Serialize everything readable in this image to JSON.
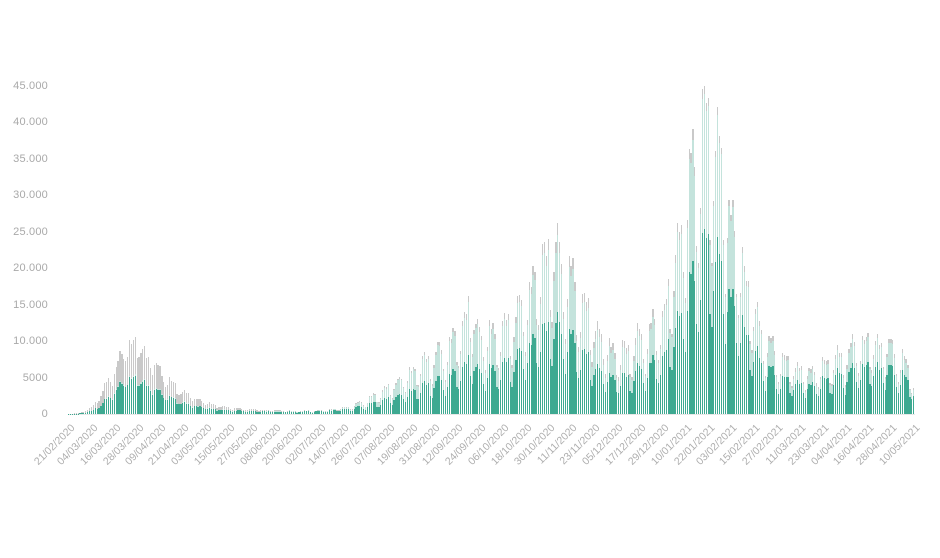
{
  "chart_data": {
    "type": "bar",
    "title": "",
    "legend": "none",
    "grid": "off",
    "n_days": 445,
    "ylim": [
      0,
      45000
    ],
    "y_axis": {
      "ticks": [
        {
          "value": 0,
          "label": "0"
        },
        {
          "value": 5000,
          "label": "5000"
        },
        {
          "value": 10000,
          "label": "10.000"
        },
        {
          "value": 15000,
          "label": "15.000"
        },
        {
          "value": 20000,
          "label": "20.000"
        },
        {
          "value": 25000,
          "label": "25.000"
        },
        {
          "value": 30000,
          "label": "30.000"
        },
        {
          "value": 35000,
          "label": "35.000"
        },
        {
          "value": 40000,
          "label": "40.000"
        },
        {
          "value": 45000,
          "label": "45.000"
        }
      ]
    },
    "x_axis": {
      "tick_interval_days": 12,
      "tick_labels": [
        "21/02/2020",
        "04/03/2020",
        "16/03/2020",
        "28/03/2020",
        "09/04/2020",
        "21/04/2020",
        "03/05/2020",
        "15/05/2020",
        "27/05/2020",
        "08/06/2020",
        "20/06/2020",
        "02/07/2020",
        "14/07/2020",
        "26/07/2020",
        "07/08/2020",
        "19/08/2020",
        "31/08/2020",
        "12/09/2020",
        "24/09/2020",
        "06/10/2020",
        "18/10/2020",
        "30/10/2020",
        "11/11/2020",
        "23/11/2020",
        "05/12/2020",
        "17/12/2020",
        "29/12/2020",
        "10/01/2021",
        "22/01/2021",
        "03/02/2021",
        "15/02/2021",
        "27/02/2021",
        "11/03/2021",
        "23/03/2021",
        "04/04/2021",
        "16/04/2021",
        "28/04/2021",
        "10/05/2021"
      ]
    },
    "weekday_profile": {
      "start_day_of_week": "Friday",
      "start_index_mon0": 4,
      "multipliers_mon_to_sun": [
        0.72,
        0.97,
        1.0,
        0.98,
        0.94,
        0.6,
        0.5
      ]
    },
    "series": [
      {
        "name": "series-gray",
        "color": "#c9c9c9",
        "anchors": [
          [
            0,
            60
          ],
          [
            6,
            160
          ],
          [
            12,
            900
          ],
          [
            18,
            3300
          ],
          [
            24,
            6500
          ],
          [
            30,
            9600
          ],
          [
            34,
            10700
          ],
          [
            40,
            9000
          ],
          [
            46,
            7000
          ],
          [
            52,
            5000
          ],
          [
            58,
            3600
          ],
          [
            64,
            2600
          ],
          [
            72,
            1700
          ],
          [
            80,
            1100
          ],
          [
            90,
            800
          ],
          [
            100,
            620
          ],
          [
            110,
            520
          ],
          [
            120,
            460
          ],
          [
            130,
            520
          ],
          [
            140,
            750
          ],
          [
            148,
            1150
          ],
          [
            156,
            2100
          ],
          [
            164,
            3300
          ],
          [
            172,
            4800
          ],
          [
            180,
            6500
          ],
          [
            188,
            8200
          ],
          [
            196,
            9600
          ],
          [
            204,
            11800
          ],
          [
            208,
            14200
          ],
          [
            211,
            17200
          ],
          [
            214,
            13500
          ],
          [
            216,
            12600
          ],
          [
            222,
            12100
          ],
          [
            228,
            12600
          ],
          [
            234,
            14600
          ],
          [
            240,
            17600
          ],
          [
            246,
            21500
          ],
          [
            252,
            25200
          ],
          [
            258,
            24400
          ],
          [
            264,
            20500
          ],
          [
            270,
            17000
          ],
          [
            276,
            13600
          ],
          [
            282,
            11000
          ],
          [
            288,
            9300
          ],
          [
            294,
            9900
          ],
          [
            300,
            11600
          ],
          [
            306,
            13100
          ],
          [
            312,
            14700
          ],
          [
            318,
            22000
          ],
          [
            324,
            33000
          ],
          [
            330,
            40500
          ],
          [
            334,
            43300
          ],
          [
            338,
            42600
          ],
          [
            344,
            36500
          ],
          [
            348,
            30000
          ],
          [
            354,
            22500
          ],
          [
            360,
            15600
          ],
          [
            366,
            11600
          ],
          [
            372,
            9100
          ],
          [
            378,
            7700
          ],
          [
            384,
            6900
          ],
          [
            390,
            6600
          ],
          [
            396,
            7300
          ],
          [
            402,
            8300
          ],
          [
            408,
            8900
          ],
          [
            414,
            10900
          ],
          [
            420,
            11100
          ],
          [
            426,
            10700
          ],
          [
            432,
            10300
          ],
          [
            438,
            8400
          ],
          [
            444,
            5300
          ]
        ]
      },
      {
        "name": "series-light-teal",
        "color": "#c4e3dc",
        "anchors": [
          [
            0,
            30
          ],
          [
            6,
            80
          ],
          [
            12,
            420
          ],
          [
            18,
            1600
          ],
          [
            24,
            3400
          ],
          [
            30,
            5000
          ],
          [
            34,
            5500
          ],
          [
            40,
            4700
          ],
          [
            46,
            3600
          ],
          [
            52,
            2600
          ],
          [
            58,
            1900
          ],
          [
            64,
            1400
          ],
          [
            72,
            950
          ],
          [
            80,
            650
          ],
          [
            90,
            500
          ],
          [
            100,
            430
          ],
          [
            110,
            390
          ],
          [
            120,
            360
          ],
          [
            130,
            430
          ],
          [
            140,
            660
          ],
          [
            148,
            1050
          ],
          [
            156,
            1950
          ],
          [
            164,
            3100
          ],
          [
            172,
            4550
          ],
          [
            180,
            6150
          ],
          [
            188,
            7800
          ],
          [
            196,
            9100
          ],
          [
            204,
            11200
          ],
          [
            208,
            13400
          ],
          [
            211,
            16300
          ],
          [
            214,
            12800
          ],
          [
            216,
            11900
          ],
          [
            222,
            11400
          ],
          [
            228,
            11900
          ],
          [
            234,
            13700
          ],
          [
            240,
            16600
          ],
          [
            246,
            20200
          ],
          [
            252,
            23600
          ],
          [
            258,
            22800
          ],
          [
            264,
            19100
          ],
          [
            270,
            15700
          ],
          [
            276,
            12300
          ],
          [
            282,
            9900
          ],
          [
            288,
            8400
          ],
          [
            294,
            9000
          ],
          [
            300,
            10700
          ],
          [
            306,
            12200
          ],
          [
            312,
            13800
          ],
          [
            318,
            21000
          ],
          [
            324,
            31600
          ],
          [
            330,
            39000
          ],
          [
            334,
            42200
          ],
          [
            338,
            41600
          ],
          [
            344,
            35600
          ],
          [
            348,
            29100
          ],
          [
            354,
            21700
          ],
          [
            360,
            14900
          ],
          [
            366,
            10900
          ],
          [
            372,
            8500
          ],
          [
            378,
            7100
          ],
          [
            384,
            6400
          ],
          [
            390,
            6100
          ],
          [
            396,
            6800
          ],
          [
            402,
            7800
          ],
          [
            408,
            8300
          ],
          [
            414,
            10300
          ],
          [
            420,
            10500
          ],
          [
            426,
            10100
          ],
          [
            432,
            9700
          ],
          [
            438,
            7900
          ],
          [
            444,
            4900
          ]
        ]
      },
      {
        "name": "series-dark-teal",
        "color": "#3ea991",
        "anchors": [
          [
            0,
            30
          ],
          [
            6,
            78
          ],
          [
            12,
            400
          ],
          [
            18,
            1520
          ],
          [
            24,
            3250
          ],
          [
            30,
            4850
          ],
          [
            34,
            5300
          ],
          [
            40,
            4500
          ],
          [
            46,
            3450
          ],
          [
            52,
            2500
          ],
          [
            58,
            1800
          ],
          [
            64,
            1300
          ],
          [
            72,
            900
          ],
          [
            80,
            600
          ],
          [
            90,
            460
          ],
          [
            100,
            390
          ],
          [
            110,
            350
          ],
          [
            120,
            330
          ],
          [
            130,
            390
          ],
          [
            140,
            540
          ],
          [
            148,
            780
          ],
          [
            156,
            1300
          ],
          [
            164,
            1950
          ],
          [
            172,
            2650
          ],
          [
            180,
            3450
          ],
          [
            188,
            4350
          ],
          [
            196,
            5050
          ],
          [
            204,
            6200
          ],
          [
            208,
            7200
          ],
          [
            211,
            8500
          ],
          [
            214,
            7000
          ],
          [
            216,
            6600
          ],
          [
            222,
            6500
          ],
          [
            228,
            7000
          ],
          [
            234,
            8100
          ],
          [
            240,
            9600
          ],
          [
            246,
            11500
          ],
          [
            252,
            13200
          ],
          [
            258,
            13000
          ],
          [
            264,
            11100
          ],
          [
            270,
            9100
          ],
          [
            276,
            7300
          ],
          [
            282,
            6000
          ],
          [
            288,
            5200
          ],
          [
            294,
            5600
          ],
          [
            300,
            6500
          ],
          [
            306,
            7400
          ],
          [
            312,
            8300
          ],
          [
            318,
            12000
          ],
          [
            324,
            17500
          ],
          [
            330,
            21800
          ],
          [
            334,
            24400
          ],
          [
            338,
            24600
          ],
          [
            344,
            21000
          ],
          [
            348,
            17600
          ],
          [
            354,
            13300
          ],
          [
            360,
            9400
          ],
          [
            366,
            7100
          ],
          [
            372,
            5700
          ],
          [
            378,
            4900
          ],
          [
            384,
            4500
          ],
          [
            390,
            4300
          ],
          [
            396,
            4900
          ],
          [
            402,
            5500
          ],
          [
            408,
            5900
          ],
          [
            414,
            6900
          ],
          [
            420,
            7100
          ],
          [
            426,
            6900
          ],
          [
            432,
            6700
          ],
          [
            438,
            5700
          ],
          [
            444,
            3700
          ]
        ]
      }
    ]
  }
}
